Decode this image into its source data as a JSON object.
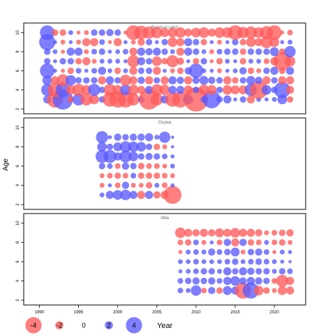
{
  "chart_data": [
    {
      "type": "scatter",
      "title": "Residual catch",
      "ylabel": "Age",
      "xlim": [
        1988,
        2024
      ],
      "ylim": [
        1.5,
        11
      ],
      "yticks": [
        2,
        4,
        6,
        8,
        10
      ],
      "size_encodes": "residual",
      "colors": {
        "negative": "#FF5A5A",
        "positive": "#5A5AFF"
      },
      "ages": [
        3,
        4,
        5,
        6,
        7,
        8,
        9,
        10
      ],
      "years": [
        1991,
        1992,
        1993,
        1994,
        1995,
        1996,
        1997,
        1998,
        1999,
        2000,
        2001,
        2002,
        2003,
        2004,
        2005,
        2006,
        2007,
        2008,
        2009,
        2010,
        2011,
        2012,
        2013,
        2014,
        2015,
        2016,
        2017,
        2018,
        2019,
        2020,
        2021,
        2022
      ],
      "residuals": {
        "3": [
          1.0,
          -2.0,
          2.5,
          -0.8,
          1.5,
          -1.5,
          -1.2,
          0.8,
          -1.8,
          -2.0,
          -2.0,
          -1.5,
          0.8,
          -2.5,
          -1.5,
          1.0,
          -1.8,
          -2.0,
          1.2,
          -3.0,
          0.8,
          2.2,
          0.8,
          1.0,
          0.5,
          0.8,
          -1.0,
          0.6,
          0.5,
          0.6,
          1.2,
          -0.8
        ],
        "4": [
          1.5,
          -1.8,
          1.8,
          -1.2,
          -1.5,
          -1.2,
          1.5,
          0.8,
          -1.5,
          -1.2,
          1.3,
          -1.3,
          -1.0,
          1.0,
          -1.4,
          -1.3,
          1.0,
          1.0,
          -1.1,
          0.8,
          -1.3,
          -1.2,
          0.8,
          -1.2,
          -1.1,
          -1.1,
          1.5,
          -2.2,
          1.2,
          0.8,
          2.0,
          -1.0
        ],
        "5": [
          1.2,
          -1.0,
          -1.5,
          1.3,
          0.8,
          0.8,
          0.8,
          -1.0,
          1.0,
          0.8,
          -1.4,
          -1.0,
          0.9,
          -1.0,
          0.8,
          -1.0,
          1.0,
          0.9,
          -1.0,
          0.9,
          1.1,
          0.9,
          0.8,
          -1.0,
          -0.8,
          0.8,
          1.1,
          0.9,
          -1.0,
          0.8,
          -1.0,
          -1.0
        ],
        "6": [
          1.8,
          0.5,
          -0.5,
          -0.8,
          0.7,
          0.5,
          0.7,
          1.0,
          0.6,
          -0.8,
          0.6,
          -1.0,
          0.8,
          0.8,
          -1.0,
          0.5,
          -0.6,
          -0.8,
          0.9,
          1.8,
          0.6,
          0.5,
          -0.6,
          0.5,
          0.6,
          0.9,
          -0.8,
          -0.6,
          0.8,
          1.0,
          -0.8,
          1.0
        ],
        "7": [
          0.8,
          0.5,
          0.8,
          0.8,
          -0.8,
          -1.0,
          -0.6,
          0.6,
          0.6,
          0.6,
          0.5,
          -1.5,
          1.0,
          0.8,
          -1.2,
          -0.8,
          -1.5,
          -0.9,
          0.5,
          -0.8,
          0.8,
          -0.5,
          -0.8,
          0.6,
          0.5,
          -0.8,
          0.6,
          0.6,
          -0.7,
          -1.0,
          -2.2,
          -1.3
        ],
        "8": [
          0.8,
          0.6,
          -0.5,
          1.0,
          1.0,
          -0.6,
          0.7,
          0.8,
          0.5,
          0.6,
          0.7,
          -1.0,
          1.0,
          0.9,
          1.0,
          0.8,
          0.6,
          -1.0,
          1.0,
          0.8,
          0.6,
          -0.6,
          0.7,
          0.8,
          0.8,
          -0.8,
          0.8,
          0.8,
          0.8,
          1.1,
          -0.8,
          1.4
        ],
        "9": [
          2.0,
          0.5,
          -0.6,
          0.5,
          -0.6,
          -1.0,
          -1.0,
          0.7,
          -0.5,
          -1.0,
          0.5,
          -0.6,
          -0.9,
          0.8,
          0.5,
          0.8,
          -1.2,
          -1.0,
          1.0,
          0.8,
          -0.8,
          0.5,
          -0.6,
          0.5,
          0.8,
          -0.8,
          -1.2,
          -1.0,
          -1.5,
          -1.2,
          0.5,
          0.6
        ],
        "10": [
          1.8,
          -0.8,
          -0.8,
          0.6,
          -0.5,
          -0.6,
          0.8,
          0.8,
          0.9,
          0.8,
          -0.5,
          -1.8,
          -1.7,
          -1.5,
          -1.4,
          -1.1,
          -1.2,
          -1.3,
          -1.0,
          -1.2,
          -1.3,
          -1.0,
          -1.3,
          -1.3,
          -1.8,
          -1.4,
          -1.5,
          -1.3,
          -1.6,
          -1.8,
          -0.5,
          -0.7
        ]
      }
    },
    {
      "type": "scatter",
      "title": "Clupea",
      "ylabel": "Age",
      "xlim": [
        1988,
        2024
      ],
      "ylim": [
        1.5,
        11
      ],
      "yticks": [
        2,
        4,
        6,
        8,
        10
      ],
      "size_encodes": "residual",
      "colors": {
        "negative": "#FF5A5A",
        "positive": "#5A5AFF"
      },
      "ages": [
        3,
        4,
        5,
        6,
        7,
        8,
        9
      ],
      "years": [
        1998,
        1999,
        2000,
        2001,
        2002,
        2003,
        2004,
        2005,
        2006,
        2007
      ],
      "residuals": {
        "3": [
          0.6,
          1.0,
          1.2,
          1.3,
          1.0,
          -1.0,
          1.0,
          -0.9,
          -1.0,
          -2.2
        ],
        "4": [
          -0.6,
          0.5,
          -0.7,
          0.9,
          -0.6,
          -0.6,
          -0.8,
          0.6,
          -0.7,
          0.5
        ],
        "5": [
          -0.6,
          -0.7,
          -0.8,
          -0.7,
          0.7,
          -0.8,
          -0.8,
          -0.8,
          -0.7,
          -0.6
        ],
        "6": [
          0.8,
          0.7,
          -0.7,
          0.9,
          0.8,
          -0.8,
          -0.7,
          -0.7,
          -0.6,
          0.6
        ],
        "7": [
          1.6,
          1.6,
          1.0,
          1.5,
          1.2,
          0.8,
          0.9,
          0.8,
          0.7,
          0.5
        ],
        "8": [
          1.2,
          0.8,
          1.1,
          1.4,
          1.3,
          1.2,
          0.8,
          -0.8,
          -0.6,
          0.4
        ],
        "9": [
          1.5,
          0.5,
          0.9,
          0.8,
          0.9,
          0.9,
          1.0,
          0.6,
          1.4,
          0.4
        ]
      }
    },
    {
      "type": "scatter",
      "title": "Alba",
      "ylabel": "Age",
      "xlim": [
        1988,
        2024
      ],
      "ylim": [
        1.5,
        11
      ],
      "yticks": [
        2,
        4,
        6,
        8,
        10
      ],
      "size_encodes": "residual",
      "colors": {
        "negative": "#FF5A5A",
        "positive": "#5A5AFF"
      },
      "ages": [
        3,
        4,
        5,
        6,
        7,
        8,
        9
      ],
      "years": [
        2008,
        2009,
        2010,
        2011,
        2012,
        2013,
        2014,
        2015,
        2016,
        2017,
        2018,
        2019,
        2020,
        2021,
        2022
      ],
      "residuals": {
        "3": [
          0.7,
          0.6,
          1.3,
          -0.7,
          0.9,
          -0.8,
          1.1,
          1.0,
          -2.0,
          2.0,
          -1.2,
          -0.8,
          -0.6,
          -1.1,
          -1.0
        ],
        "4": [
          0.7,
          0.8,
          0.9,
          0.8,
          0.9,
          0.7,
          1.0,
          1.2,
          0.9,
          1.0,
          0.9,
          0.8,
          -0.7,
          -1.5,
          -1.0
        ],
        "5": [
          0.5,
          0.6,
          0.7,
          0.8,
          0.8,
          0.6,
          1.0,
          0.8,
          1.0,
          0.9,
          0.8,
          0.8,
          0.6,
          0.8,
          0.7
        ],
        "6": [
          0.6,
          0.6,
          0.7,
          0.6,
          0.6,
          0.6,
          0.7,
          0.8,
          0.6,
          0.7,
          0.8,
          0.7,
          0.6,
          0.5,
          0.4
        ],
        "7": [
          -0.5,
          0.6,
          0.7,
          0.6,
          0.9,
          0.7,
          0.8,
          1.1,
          -0.6,
          0.8,
          0.9,
          0.7,
          -0.5,
          0.6,
          0.5
        ],
        "8": [
          -0.7,
          -0.8,
          0.7,
          -0.6,
          0.5,
          -0.7,
          0.9,
          -1.0,
          0.9,
          -0.8,
          -0.7,
          0.6,
          -0.7,
          -0.8,
          -0.6
        ],
        "9": [
          -1.3,
          -1.0,
          -0.9,
          -1.0,
          -0.9,
          -1.1,
          -1.0,
          -1.2,
          -1.0,
          -1.0,
          -0.9,
          -0.6,
          -0.7,
          -0.8,
          -0.9
        ]
      }
    }
  ],
  "x_axis": {
    "ticks": [
      1990,
      1995,
      2000,
      2005,
      2010,
      2015,
      2020
    ]
  },
  "y_axis_label": "Age",
  "legend": {
    "values": [
      -4,
      -2,
      0,
      2,
      4
    ],
    "title": "Year"
  }
}
